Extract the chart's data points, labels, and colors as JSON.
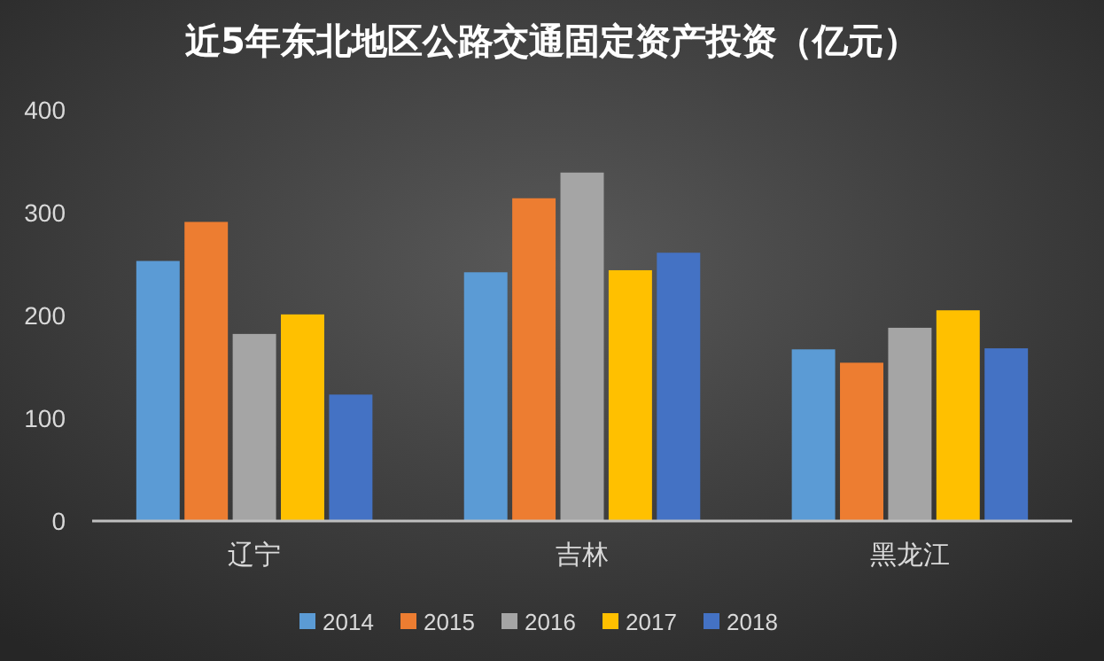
{
  "chart_data": {
    "type": "bar",
    "title": "近5年东北地区公路交通固定资产投资（亿元）",
    "categories": [
      "辽宁",
      "吉林",
      "黑龙江"
    ],
    "series": [
      {
        "name": "2014",
        "color": "#5b9bd5",
        "values": [
          253,
          242,
          167
        ]
      },
      {
        "name": "2015",
        "color": "#ed7d31",
        "values": [
          291,
          314,
          154
        ]
      },
      {
        "name": "2016",
        "color": "#a5a5a5",
        "values": [
          182,
          339,
          188
        ]
      },
      {
        "name": "2017",
        "color": "#ffc000",
        "values": [
          201,
          244,
          205
        ]
      },
      {
        "name": "2018",
        "color": "#4472c4",
        "values": [
          123,
          261,
          168
        ]
      }
    ],
    "ylim": [
      0,
      400
    ],
    "yticks": [
      0,
      100,
      200,
      300,
      400
    ],
    "grid": false,
    "legend": "bottom"
  }
}
